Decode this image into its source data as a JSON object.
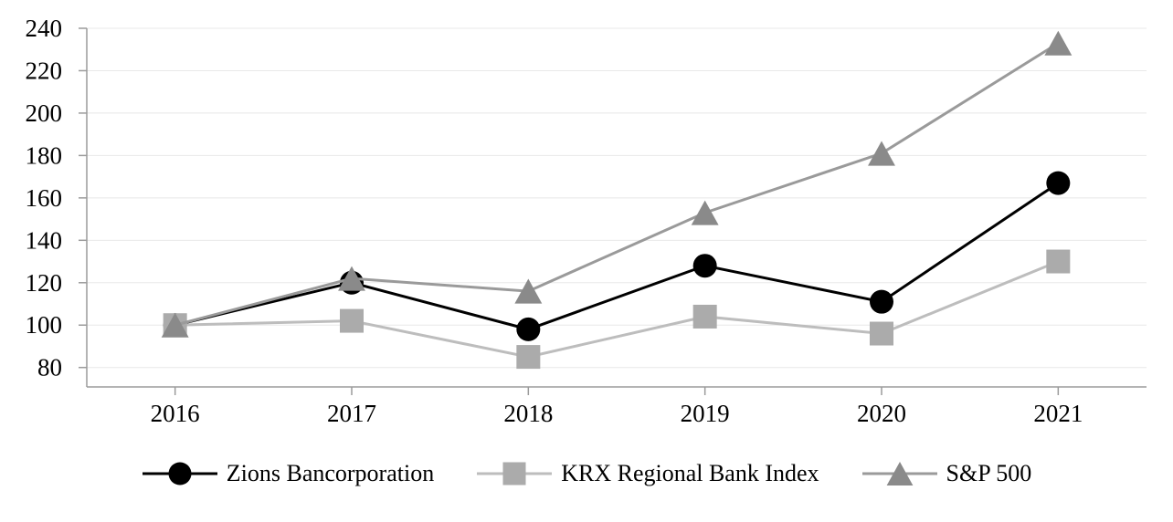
{
  "chart_data": {
    "type": "line",
    "title": "",
    "xlabel": "",
    "ylabel": "",
    "categories": [
      "2016",
      "2017",
      "2018",
      "2019",
      "2020",
      "2021"
    ],
    "series": [
      {
        "name": "Zions Bancorporation",
        "marker": "circle",
        "color": "#000000",
        "line_color": "#000000",
        "values": [
          100,
          120,
          98,
          128,
          111,
          167
        ]
      },
      {
        "name": "KRX Regional Bank Index",
        "marker": "square",
        "color": "#ababab",
        "line_color": "#bdbdbd",
        "values": [
          100,
          102,
          85,
          104,
          96,
          130
        ]
      },
      {
        "name": "S&P 500",
        "marker": "triangle",
        "color": "#8a8a8a",
        "line_color": "#9a9a9a",
        "values": [
          100,
          122,
          116,
          153,
          181,
          233
        ]
      }
    ],
    "yticks": [
      80,
      100,
      120,
      140,
      160,
      180,
      200,
      220,
      240
    ],
    "ylim": [
      69,
      240
    ],
    "grid": true,
    "grid_color": "#e8e8e8",
    "axis_color": "#9b9b9b",
    "legend_position": "bottom"
  }
}
